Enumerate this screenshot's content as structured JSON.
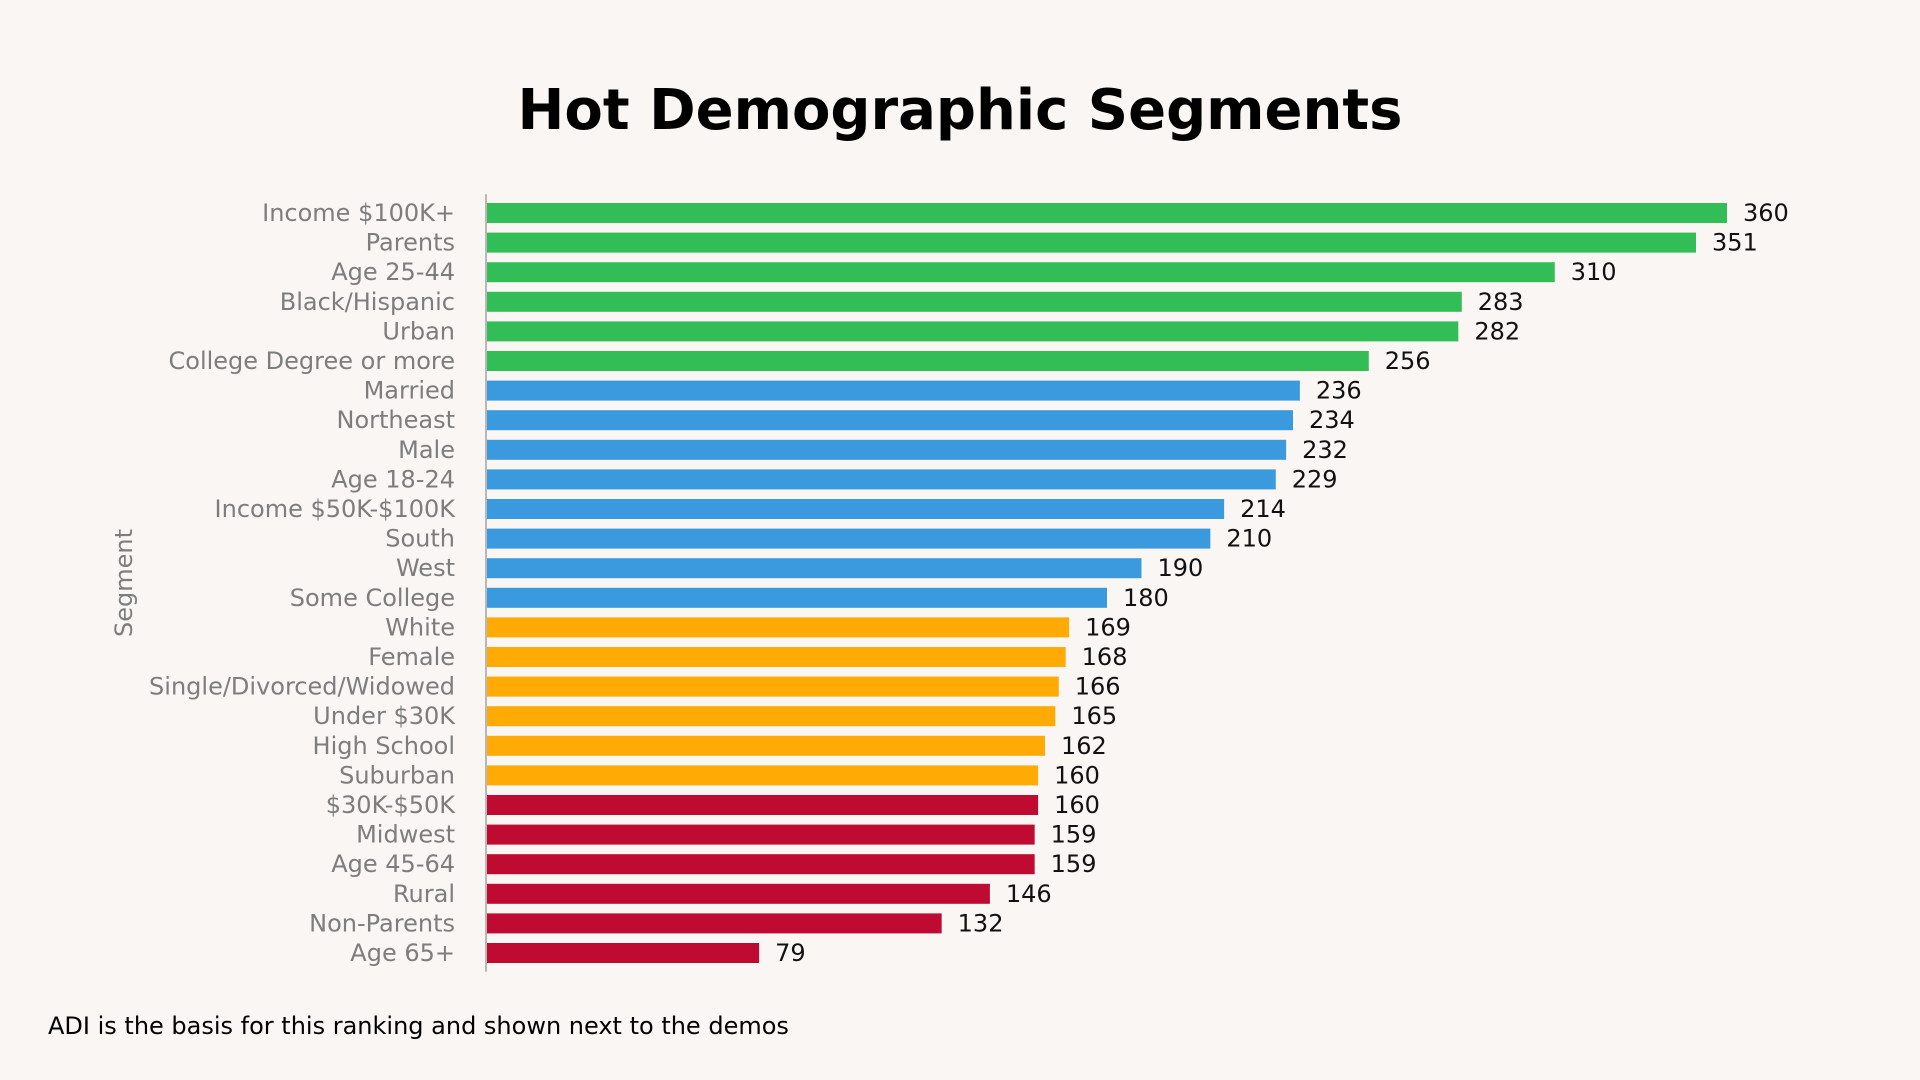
{
  "title": "Hot Demographic Segments",
  "footnote": "ADI is the basis for this ranking and shown next to the demos",
  "colors": {
    "background": "#f9f6f3",
    "tier_green": "#32bd57",
    "tier_blue": "#3b9ade",
    "tier_orange": "#ffaa05",
    "tier_red": "#bf0a31",
    "axis_line": "#b8b8b8"
  },
  "chart_data": {
    "type": "bar",
    "orientation": "horizontal",
    "title": "Hot Demographic Segments",
    "ylabel": "Segment",
    "xlabel": "",
    "xlim": [
      0,
      360
    ],
    "grid": false,
    "legend": "none",
    "categories": [
      "Income $100K+",
      "Parents",
      "Age 25-44",
      "Black/Hispanic",
      "Urban",
      "College Degree or more",
      "Married",
      "Northeast",
      "Male",
      "Age 18-24",
      "Income $50K-$100K",
      "South",
      "West",
      "Some College",
      "White",
      "Female",
      "Single/Divorced/Widowed",
      "Under $30K",
      "High School",
      "Suburban",
      "$30K-$50K",
      "Midwest",
      "Age 45-64",
      "Rural",
      "Non-Parents",
      "Age 65+"
    ],
    "values": [
      360,
      351,
      310,
      283,
      282,
      256,
      236,
      234,
      232,
      229,
      214,
      210,
      190,
      180,
      169,
      168,
      166,
      165,
      162,
      160,
      160,
      159,
      159,
      146,
      132,
      79
    ],
    "bar_colors": [
      "#32bd57",
      "#32bd57",
      "#32bd57",
      "#32bd57",
      "#32bd57",
      "#32bd57",
      "#3b9ade",
      "#3b9ade",
      "#3b9ade",
      "#3b9ade",
      "#3b9ade",
      "#3b9ade",
      "#3b9ade",
      "#3b9ade",
      "#ffaa05",
      "#ffaa05",
      "#ffaa05",
      "#ffaa05",
      "#ffaa05",
      "#ffaa05",
      "#bf0a31",
      "#bf0a31",
      "#bf0a31",
      "#bf0a31",
      "#bf0a31",
      "#bf0a31"
    ]
  }
}
